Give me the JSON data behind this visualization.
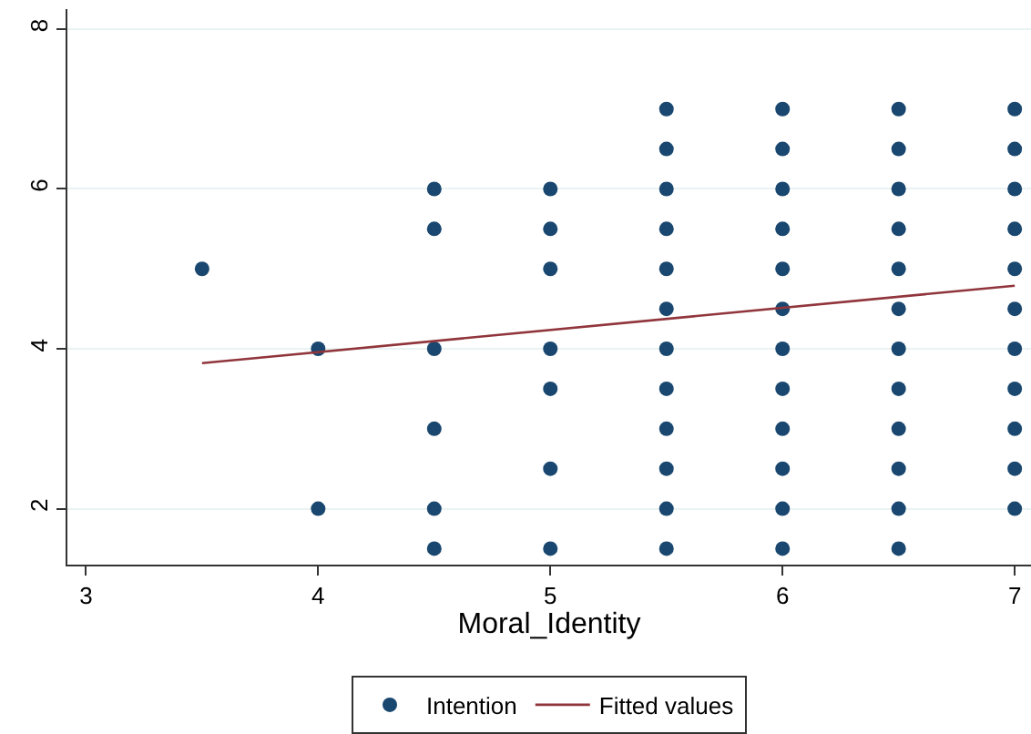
{
  "chart_data": {
    "type": "scatter",
    "xlabel": "Moral_Identity",
    "xlim": [
      2.92,
      7.07
    ],
    "xticks": [
      3,
      4,
      5,
      6,
      7
    ],
    "ylim": [
      1.3,
      8.25
    ],
    "yticks": [
      2,
      4,
      6,
      8
    ],
    "grid": "y",
    "legend": "bottom",
    "marker": "circle",
    "series": [
      {
        "name": "Intention",
        "color": "#1a476f",
        "x": [
          3.5,
          4,
          4,
          4.5,
          4.5,
          4.5,
          4.5,
          4.5,
          4.5,
          5,
          5,
          5,
          5,
          5,
          5,
          5,
          5.5,
          5.5,
          5.5,
          5.5,
          5.5,
          5.5,
          5.5,
          5.5,
          5.5,
          5.5,
          5.5,
          5.5,
          6,
          6,
          6,
          6,
          6,
          6,
          6,
          6,
          6,
          6,
          6,
          6,
          6.5,
          6.5,
          6.5,
          6.5,
          6.5,
          6.5,
          6.5,
          6.5,
          6.5,
          6.5,
          6.5,
          6.5,
          7,
          7,
          7,
          7,
          7,
          7,
          7,
          7,
          7,
          7,
          7
        ],
        "values": [
          5,
          4,
          2,
          6,
          5.5,
          4,
          3,
          2,
          1.5,
          6,
          5.5,
          5,
          4,
          3.5,
          2.5,
          1.5,
          7,
          6.5,
          6,
          5.5,
          5,
          4.5,
          4,
          3.5,
          3,
          2.5,
          2,
          1.5,
          7,
          6.5,
          6,
          5.5,
          5,
          4.5,
          4,
          3.5,
          3,
          2.5,
          2,
          1.5,
          7,
          6.5,
          6,
          5.5,
          5,
          4.5,
          4,
          3.5,
          3,
          2.5,
          2,
          1.5,
          7,
          6.5,
          6,
          5.5,
          5,
          4.5,
          4,
          3.5,
          3,
          2.5,
          2
        ]
      },
      {
        "name": "Fitted values",
        "color": "#90353b",
        "type": "line",
        "marker": "none",
        "x": [
          3.5,
          7
        ],
        "values": [
          3.82,
          4.79
        ]
      }
    ]
  }
}
